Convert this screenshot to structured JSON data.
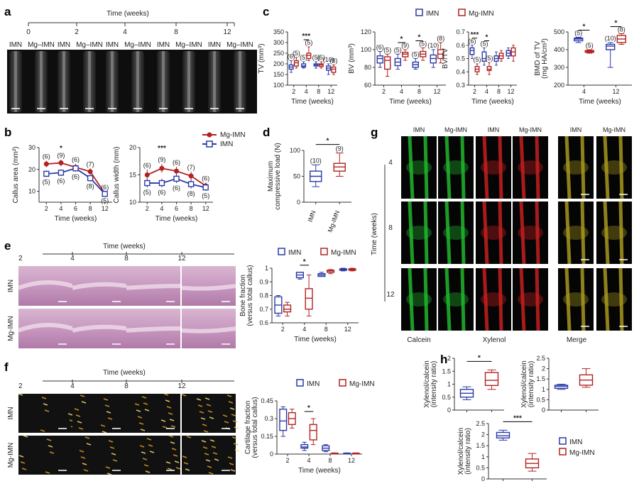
{
  "colors": {
    "imn": "#2b3aa8",
    "mg": "#b22222"
  },
  "panels": {
    "a": {
      "letter": "a",
      "header": "Time (weeks)",
      "weeks": [
        "0",
        "2",
        "4",
        "8",
        "12"
      ],
      "groups": [
        "IMN",
        "Mg–IMN"
      ]
    },
    "b": {
      "letter": "b"
    },
    "c": {
      "letter": "c"
    },
    "d": {
      "letter": "d"
    },
    "e": {
      "letter": "e",
      "header": "Time (weeks)",
      "weeks": [
        "2",
        "4",
        "8",
        "12"
      ],
      "rows": [
        "IMN",
        "Mg-IMN"
      ]
    },
    "f": {
      "letter": "f",
      "header": "Time (weeks)",
      "weeks": [
        "2",
        "4",
        "8",
        "12"
      ],
      "rows": [
        "IMN",
        "Mg-IMN"
      ]
    },
    "g": {
      "letter": "g",
      "cols": [
        "IMN",
        "Mg-IMN",
        "IMN",
        "Mg-IMN",
        "IMN",
        "Mg-IMN"
      ],
      "rows": [
        "4",
        "8",
        "12"
      ],
      "axis": "Time (weeks)",
      "bottom": [
        "Calcein",
        "Xylenol",
        "Merge"
      ]
    },
    "h": {
      "letter": "h"
    }
  },
  "legend": {
    "imn": "IMN",
    "mg": "Mg-IMN",
    "mg_b": "Mg-IMN"
  },
  "chart_data": [
    {
      "id": "b1",
      "type": "line",
      "x": [
        2,
        4,
        6,
        8,
        12
      ],
      "xlabel": "Time (weeks)",
      "ylabel": "Callus area (mm²)",
      "ylim": [
        5,
        30
      ],
      "yticks": [
        10,
        20,
        30
      ],
      "series": [
        {
          "name": "Mg-IMN",
          "values": [
            22.5,
            23,
            21,
            19,
            9
          ],
          "errors": [
            1.5,
            1.5,
            1.5,
            1.5,
            0.8
          ],
          "n": [
            "(6)",
            "(9)",
            "(6)",
            "(7)",
            "(6)"
          ]
        },
        {
          "name": "IMN",
          "values": [
            18,
            18.5,
            20.5,
            16,
            8.8
          ],
          "errors": [
            1.5,
            1.5,
            1.5,
            1.5,
            0.8
          ],
          "n": [
            "(5)",
            "(6)",
            "(6)",
            "(8)",
            "(5)"
          ]
        }
      ],
      "sig": [
        {
          "x": 4,
          "label": "*"
        }
      ]
    },
    {
      "id": "b2",
      "type": "line",
      "x": [
        2,
        4,
        6,
        8,
        12
      ],
      "xlabel": "Time (weeks)",
      "ylabel": "Callus width (mm)",
      "ylim": [
        10,
        20
      ],
      "yticks": [
        10,
        15,
        20
      ],
      "series": [
        {
          "name": "Mg-IMN",
          "values": [
            15,
            16.2,
            15.7,
            14.8,
            13
          ],
          "errors": [
            1,
            0.8,
            0.8,
            0.8,
            0.6
          ],
          "n": [
            "(6)",
            "(9)",
            "(6)",
            "(7)",
            "(6)"
          ]
        },
        {
          "name": "IMN",
          "values": [
            13.5,
            13.5,
            14.3,
            13.3,
            12.7
          ],
          "errors": [
            0.8,
            0.8,
            0.8,
            0.8,
            0.6
          ],
          "n": [
            "(5)",
            "(6)",
            "(6)",
            "(8)",
            "(5)"
          ]
        }
      ],
      "sig": [
        {
          "x": 4,
          "label": "***"
        }
      ]
    },
    {
      "id": "c1",
      "type": "box",
      "categories": [
        "2",
        "4",
        "8",
        "12"
      ],
      "xlabel": "Time (weeks)",
      "ylabel": "TV (mm³)",
      "ylim": [
        100,
        350
      ],
      "yticks": [
        100,
        150,
        200,
        250,
        300,
        350
      ],
      "series": [
        {
          "name": "IMN",
          "boxes": [
            [
              160,
              175,
              185,
              195,
              215
            ],
            [
              180,
              185,
              190,
              200,
              210
            ],
            [
              180,
              190,
              195,
              200,
              210
            ],
            [
              150,
              170,
              180,
              190,
              200
            ]
          ]
        },
        {
          "name": "Mg-IMN",
          "boxes": [
            [
              180,
              190,
              205,
              215,
              230
            ],
            [
              215,
              225,
              240,
              250,
              280
            ],
            [
              180,
              188,
              195,
              200,
              210
            ],
            [
              150,
              160,
              175,
              185,
              195
            ]
          ]
        }
      ],
      "n": [
        [
          "(6)",
          "(5)"
        ],
        [
          "(5)",
          "(5)"
        ],
        [
          "(5)",
          "(5)"
        ],
        [
          "(10)",
          "(8)"
        ]
      ],
      "sig": [
        {
          "cat": 1,
          "label": "***"
        }
      ]
    },
    {
      "id": "c2",
      "type": "box",
      "categories": [
        "2",
        "4",
        "8",
        "12"
      ],
      "xlabel": "Time (weeks)",
      "ylabel": "BV (mm³)",
      "ylim": [
        60,
        120
      ],
      "yticks": [
        60,
        80,
        100,
        120
      ],
      "series": [
        {
          "name": "IMN",
          "boxes": [
            [
              80,
              85,
              90,
              93,
              98
            ],
            [
              78,
              82,
              86,
              90,
              95
            ],
            [
              78,
              80,
              83,
              86,
              90
            ],
            [
              80,
              85,
              90,
              94,
              100
            ]
          ]
        },
        {
          "name": "Mg-IMN",
          "boxes": [
            [
              70,
              78,
              88,
              92,
              95
            ],
            [
              88,
              92,
              95,
              97,
              100
            ],
            [
              88,
              92,
              95,
              98,
              102
            ],
            [
              85,
              90,
              95,
              100,
              108
            ]
          ]
        }
      ],
      "n": [
        [
          "(6)",
          "(5)"
        ],
        [
          "(5)",
          "(9)"
        ],
        [
          "(5)",
          "(5)"
        ],
        [
          "(10)",
          "(8)"
        ]
      ],
      "sig": [
        {
          "cat": 1,
          "label": "*"
        },
        {
          "cat": 2,
          "label": "*"
        }
      ]
    },
    {
      "id": "c3",
      "type": "box",
      "categories": [
        "2",
        "4",
        "8",
        "12"
      ],
      "xlabel": "Time (weeks)",
      "ylabel": "BV/TV",
      "ylim": [
        0.3,
        0.7
      ],
      "yticks": [
        0.3,
        0.4,
        0.5,
        0.6,
        0.7
      ],
      "series": [
        {
          "name": "IMN",
          "boxes": [
            [
              0.5,
              0.53,
              0.56,
              0.58,
              0.6
            ],
            [
              0.45,
              0.48,
              0.5,
              0.55,
              0.58
            ],
            [
              0.45,
              0.48,
              0.5,
              0.52,
              0.55
            ],
            [
              0.5,
              0.52,
              0.54,
              0.56,
              0.58
            ]
          ]
        },
        {
          "name": "Mg-IMN",
          "boxes": [
            [
              0.38,
              0.4,
              0.42,
              0.44,
              0.46
            ],
            [
              0.38,
              0.41,
              0.42,
              0.44,
              0.47
            ],
            [
              0.48,
              0.5,
              0.52,
              0.54,
              0.56
            ],
            [
              0.48,
              0.52,
              0.55,
              0.58,
              0.6
            ]
          ]
        }
      ],
      "n": [
        [
          "(6)",
          "(5)"
        ],
        [
          "(5)",
          "(5)"
        ],
        [
          "",
          ""
        ],
        [
          "",
          ""
        ]
      ],
      "sig": [
        {
          "cat": 0,
          "label": "***"
        },
        {
          "cat": 1,
          "label": "*"
        }
      ]
    },
    {
      "id": "c4",
      "type": "box",
      "categories": [
        "4",
        "12"
      ],
      "xlabel": "Time (weeks)",
      "ylabel": "BMD of TV (mg HA/cm³)",
      "ylim": [
        200,
        500
      ],
      "yticks": [
        200,
        300,
        400,
        500
      ],
      "series": [
        {
          "name": "IMN",
          "boxes": [
            [
              440,
              450,
              460,
              465,
              470
            ],
            [
              300,
              400,
              420,
              430,
              440
            ]
          ]
        },
        {
          "name": "Mg-IMN",
          "boxes": [
            [
              380,
              385,
              390,
              395,
              400
            ],
            [
              430,
              440,
              460,
              480,
              490
            ]
          ]
        }
      ],
      "n": [
        [
          "(5)",
          "(5)"
        ],
        [
          "(10)",
          "(8)"
        ]
      ],
      "sig": [
        {
          "cat": 0,
          "label": "*"
        },
        {
          "cat": 1,
          "label": "*"
        }
      ]
    },
    {
      "id": "d",
      "type": "box",
      "categories": [
        "IMN",
        "Mg-IMN"
      ],
      "ylabel": "Maximum compressive load (N)",
      "ylim": [
        0,
        100
      ],
      "yticks": [
        0,
        50,
        100
      ],
      "series": [
        {
          "name": "IMN",
          "boxes": [
            [
              30,
              40,
              50,
              60,
              72
            ]
          ]
        },
        {
          "name": "Mg-IMN",
          "boxes": [
            [
              50,
              60,
              68,
              75,
              95
            ]
          ]
        }
      ],
      "n": [
        [
          "(10)",
          "(9)"
        ]
      ],
      "sig": [
        {
          "label": "*"
        }
      ]
    },
    {
      "id": "e",
      "type": "box",
      "categories": [
        "2",
        "4",
        "8",
        "12"
      ],
      "xlabel": "Time (weeks)",
      "ylabel": "Bone fraction (versus total callus)",
      "ylim": [
        0.6,
        1.0
      ],
      "yticks": [
        0.6,
        0.7,
        0.8,
        0.9,
        1.0
      ],
      "series": [
        {
          "name": "IMN",
          "boxes": [
            [
              0.65,
              0.67,
              0.73,
              0.79,
              0.8
            ],
            [
              0.92,
              0.93,
              0.95,
              0.97,
              0.97
            ],
            [
              0.94,
              0.94,
              0.95,
              0.96,
              0.97
            ],
            [
              0.98,
              0.985,
              0.99,
              0.995,
              1.0
            ]
          ]
        },
        {
          "name": "Mg-IMN",
          "boxes": [
            [
              0.65,
              0.68,
              0.7,
              0.73,
              0.75
            ],
            [
              0.65,
              0.7,
              0.78,
              0.85,
              0.95
            ],
            [
              0.96,
              0.97,
              0.98,
              0.985,
              0.99
            ],
            [
              0.98,
              0.985,
              0.99,
              0.995,
              1.0
            ]
          ]
        }
      ],
      "sig": [
        {
          "cat": 1,
          "label": "*"
        }
      ]
    },
    {
      "id": "f",
      "type": "box",
      "categories": [
        "2",
        "4",
        "8",
        "12"
      ],
      "xlabel": "Time (weeks)",
      "ylabel": "Cartilage fraction (versus total callus)",
      "ylim": [
        0,
        0.45
      ],
      "yticks": [
        0,
        0.15,
        0.3,
        0.45
      ],
      "series": [
        {
          "name": "IMN",
          "boxes": [
            [
              0.15,
              0.2,
              0.28,
              0.38,
              0.4
            ],
            [
              0.03,
              0.05,
              0.06,
              0.08,
              0.1
            ],
            [
              0.02,
              0.03,
              0.05,
              0.07,
              0.08
            ],
            [
              0,
              0.002,
              0.005,
              0.008,
              0.01
            ]
          ]
        },
        {
          "name": "Mg-IMN",
          "boxes": [
            [
              0.22,
              0.25,
              0.3,
              0.35,
              0.38
            ],
            [
              0.08,
              0.12,
              0.2,
              0.25,
              0.3
            ],
            [
              0,
              0.002,
              0.005,
              0.008,
              0.01
            ],
            [
              0,
              0.002,
              0.005,
              0.008,
              0.01
            ]
          ]
        }
      ],
      "sig": [
        {
          "cat": 1,
          "label": "*"
        }
      ]
    },
    {
      "id": "h1",
      "type": "box",
      "categories": [
        "IMN",
        "Mg-IMN"
      ],
      "ylabel": "Xylenol/calcein (intensity ratio)",
      "ylim": [
        0,
        2.0
      ],
      "yticks": [
        0,
        0.5,
        1.0,
        1.5,
        2.0
      ],
      "series": [
        {
          "name": "IMN",
          "boxes": [
            [
              0.4,
              0.5,
              0.65,
              0.8,
              0.9
            ]
          ]
        },
        {
          "name": "Mg-IMN",
          "boxes": [
            [
              0.8,
              0.95,
              1.15,
              1.45,
              1.55
            ]
          ]
        }
      ],
      "sig": [
        {
          "label": "*"
        }
      ]
    },
    {
      "id": "h2",
      "type": "box",
      "categories": [
        "IMN",
        "Mg-IMN"
      ],
      "ylabel": "Xylenol/calcein (intensity ratio)",
      "ylim": [
        0,
        2.5
      ],
      "yticks": [
        0,
        0.5,
        1.0,
        1.5,
        2.0,
        2.5
      ],
      "series": [
        {
          "name": "IMN",
          "boxes": [
            [
              1.0,
              1.05,
              1.15,
              1.2,
              1.25
            ]
          ]
        },
        {
          "name": "Mg-IMN",
          "boxes": [
            [
              1.1,
              1.2,
              1.45,
              1.7,
              2.0
            ]
          ]
        }
      ],
      "sig": []
    },
    {
      "id": "h3",
      "type": "box",
      "categories": [
        "IMN",
        "Mg-IMN"
      ],
      "ylabel": "Xylenol/calcein (intensity ratio)",
      "ylim": [
        0,
        2.5
      ],
      "yticks": [
        0,
        0.5,
        1.0,
        1.5,
        2.0,
        2.5
      ],
      "series": [
        {
          "name": "IMN",
          "boxes": [
            [
              1.75,
              1.85,
              1.95,
              2.1,
              2.2
            ]
          ]
        },
        {
          "name": "Mg-IMN",
          "boxes": [
            [
              0.35,
              0.5,
              0.7,
              0.9,
              1.15
            ]
          ]
        }
      ],
      "sig": [
        {
          "label": "***"
        }
      ]
    }
  ]
}
